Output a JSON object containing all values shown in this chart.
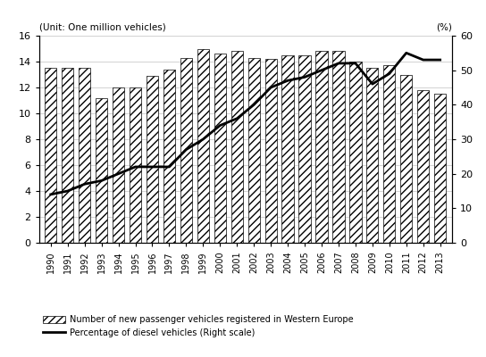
{
  "years": [
    1990,
    1991,
    1992,
    1993,
    1994,
    1995,
    1996,
    1997,
    1998,
    1999,
    2000,
    2001,
    2002,
    2003,
    2004,
    2005,
    2006,
    2007,
    2008,
    2009,
    2010,
    2011,
    2012,
    2013
  ],
  "vehicles": [
    13.5,
    13.5,
    13.5,
    11.2,
    12.0,
    12.0,
    12.9,
    13.4,
    14.3,
    15.0,
    14.6,
    14.8,
    14.3,
    14.2,
    14.5,
    14.5,
    14.8,
    14.8,
    14.0,
    13.5,
    13.7,
    13.0,
    11.8,
    11.5
  ],
  "diesel_pct": [
    14,
    15,
    17,
    18,
    20,
    22,
    22,
    22,
    27,
    30,
    34,
    36,
    40,
    45,
    47,
    48,
    50,
    52,
    52,
    46,
    49,
    55,
    53,
    53
  ],
  "bar_color": "#ffffff",
  "bar_edgecolor": "#000000",
  "line_color": "#000000",
  "left_ylim": [
    0,
    16
  ],
  "right_ylim": [
    0,
    60
  ],
  "left_yticks": [
    0,
    2,
    4,
    6,
    8,
    10,
    12,
    14,
    16
  ],
  "right_yticks": [
    0,
    10,
    20,
    30,
    40,
    50,
    60
  ],
  "left_ylabel_top": "(Unit: One million vehicles)",
  "right_ylabel_top": "(%)",
  "legend_bar_label": "Number of new passenger vehicles registered in Western Europe",
  "legend_line_label": "Percentage of diesel vehicles (Right scale)",
  "hatch": "////"
}
